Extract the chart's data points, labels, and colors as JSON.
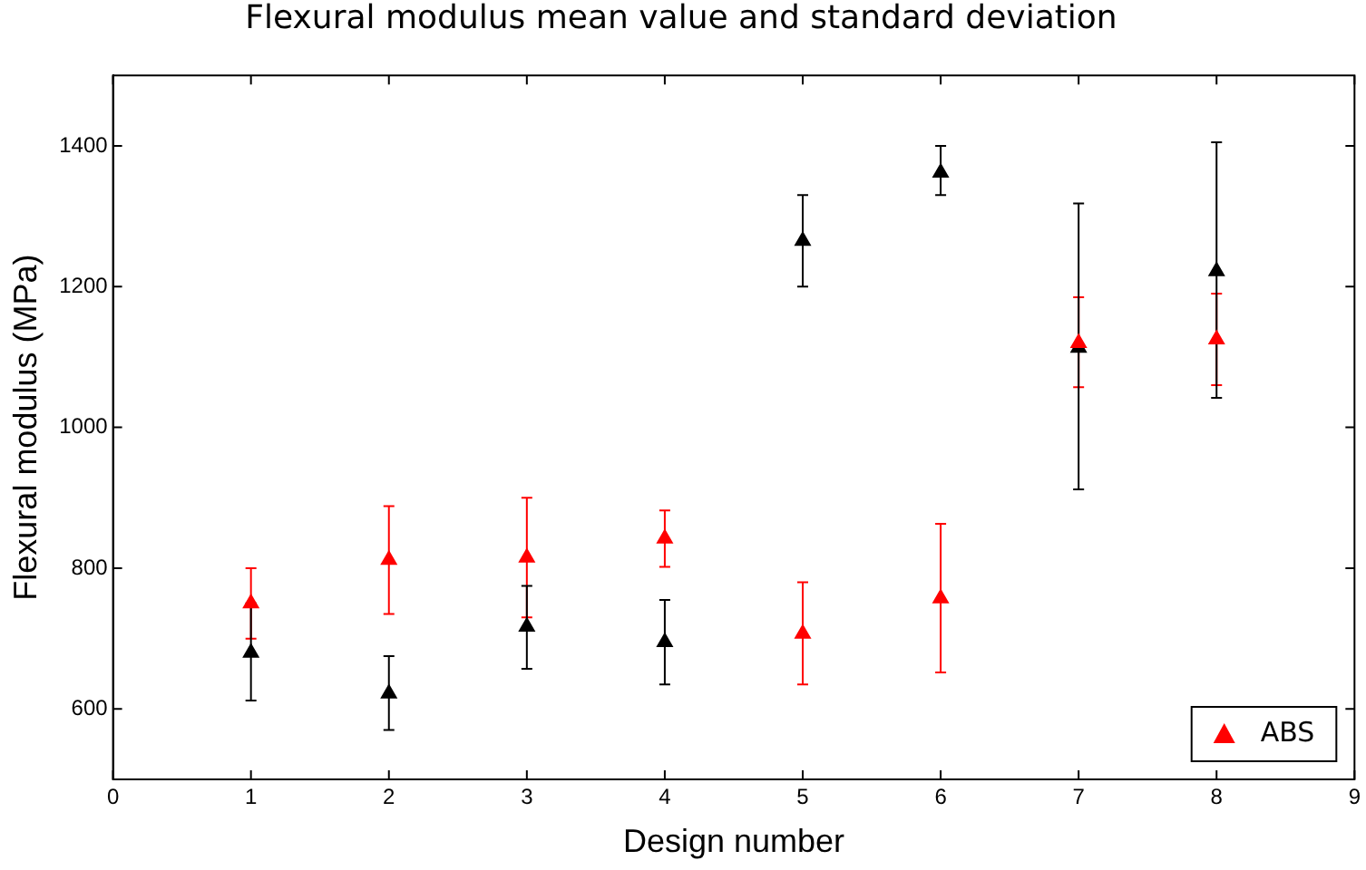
{
  "chart_data": {
    "type": "scatter",
    "title": "Flexural modulus mean value and standard deviation",
    "xlabel": "Design number",
    "ylabel": "Flexural modulus (MPa)",
    "x": [
      1,
      2,
      3,
      4,
      5,
      6,
      7,
      8
    ],
    "series": [
      {
        "name": "ABS",
        "color": "#ff0000",
        "values": [
          750,
          812,
          815,
          842,
          707,
          757,
          1120,
          1125
        ],
        "errors": [
          [
            700,
            800
          ],
          [
            735,
            888
          ],
          [
            730,
            900
          ],
          [
            802,
            882
          ],
          [
            635,
            780
          ],
          [
            652,
            863
          ],
          [
            1057,
            1185
          ],
          [
            1060,
            1190
          ]
        ]
      },
      {
        "color": "#000000",
        "values": [
          680,
          622,
          717,
          695,
          1265,
          1362,
          1113,
          1222
        ],
        "errors": [
          [
            612,
            750
          ],
          [
            570,
            675
          ],
          [
            657,
            775
          ],
          [
            635,
            755
          ],
          [
            1200,
            1330
          ],
          [
            1330,
            1400
          ],
          [
            912,
            1318
          ],
          [
            1042,
            1405
          ]
        ]
      }
    ],
    "xlim": [
      0,
      9
    ],
    "xticks": [
      0,
      1,
      2,
      3,
      4,
      5,
      6,
      7,
      8,
      9
    ],
    "ylim": [
      500,
      1500
    ],
    "yticks": [
      600,
      800,
      1000,
      1200,
      1400
    ],
    "marker": "triangle",
    "grid": false,
    "legend": "bottom right"
  }
}
